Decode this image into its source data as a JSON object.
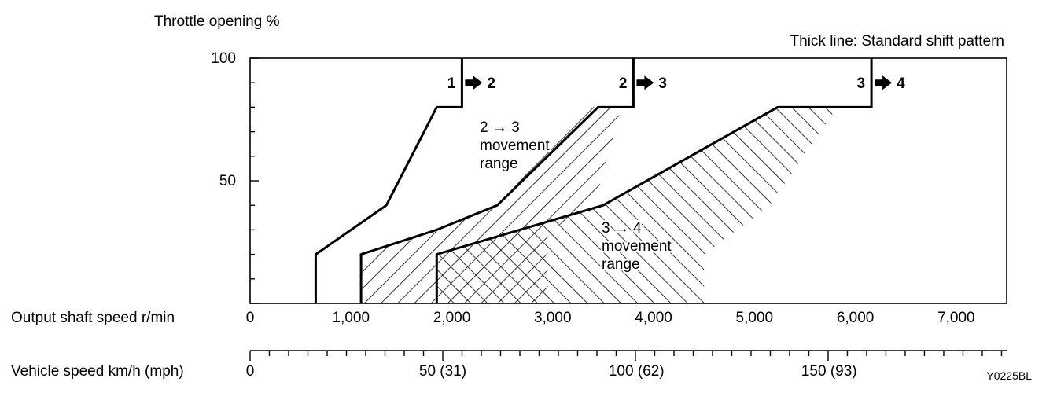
{
  "chart_data": {
    "type": "area",
    "y_title": "Throttle opening %",
    "note": "Thick line: Standard shift pattern",
    "x_label": "Output shaft speed r/min",
    "x2_label": "Vehicle speed km/h (mph)",
    "figure_code": "Y0225BL",
    "xlim": [
      0,
      7500
    ],
    "ylim": [
      0,
      100
    ],
    "y_ticks": [
      {
        "value": 100,
        "label": "100"
      },
      {
        "value": 50,
        "label": "50"
      }
    ],
    "x_ticks": [
      {
        "value": 0,
        "label": "0"
      },
      {
        "value": 1000,
        "label": "1,000"
      },
      {
        "value": 2000,
        "label": "2,000"
      },
      {
        "value": 3000,
        "label": "3,000"
      },
      {
        "value": 4000,
        "label": "4,000"
      },
      {
        "value": 5000,
        "label": "5,000"
      },
      {
        "value": 6000,
        "label": "6,000"
      },
      {
        "value": 7000,
        "label": "7,000"
      }
    ],
    "x2_ticks": [
      {
        "value": 0,
        "label": "0"
      },
      {
        "value": 1910,
        "label": "50 (31)"
      },
      {
        "value": 3830,
        "label": "100 (62)"
      },
      {
        "value": 5740,
        "label": "150 (93)"
      }
    ],
    "x2_minor_step": 191,
    "shift_lines": [
      {
        "name": "1 → 2",
        "label_from": "1",
        "label_to": "2",
        "points": [
          [
            650,
            0
          ],
          [
            650,
            20
          ],
          [
            1350,
            40
          ],
          [
            1850,
            80
          ],
          [
            2100,
            80
          ],
          [
            2100,
            100
          ]
        ]
      },
      {
        "name": "2 → 3",
        "label_from": "2",
        "label_to": "3",
        "points": [
          [
            1100,
            0
          ],
          [
            1100,
            20
          ],
          [
            1850,
            30
          ],
          [
            2450,
            40
          ],
          [
            3450,
            80
          ],
          [
            3800,
            80
          ],
          [
            3800,
            100
          ]
        ]
      },
      {
        "name": "3 → 4",
        "label_from": "3",
        "label_to": "4",
        "points": [
          [
            1850,
            0
          ],
          [
            1850,
            20
          ],
          [
            3500,
            40
          ],
          [
            5230,
            80
          ],
          [
            6160,
            80
          ],
          [
            6160,
            100
          ]
        ]
      }
    ],
    "ranges": [
      {
        "name": "2 → 3 movement range",
        "label_lines": [
          "2 → 3",
          "movement",
          "range"
        ],
        "polygon": [
          [
            1100,
            0
          ],
          [
            1100,
            20
          ],
          [
            1850,
            30
          ],
          [
            2450,
            40
          ],
          [
            3350,
            80
          ],
          [
            3680,
            80
          ],
          [
            3400,
            38
          ],
          [
            2950,
            30
          ],
          [
            2950,
            0
          ]
        ]
      },
      {
        "name": "3 → 4 movement range",
        "label_lines": [
          "3 → 4",
          "movement",
          "range"
        ],
        "polygon": [
          [
            1850,
            0
          ],
          [
            1850,
            20
          ],
          [
            3500,
            40
          ],
          [
            5230,
            80
          ],
          [
            5820,
            80
          ],
          [
            5150,
            40
          ],
          [
            4500,
            20
          ],
          [
            4500,
            0
          ]
        ]
      }
    ]
  }
}
